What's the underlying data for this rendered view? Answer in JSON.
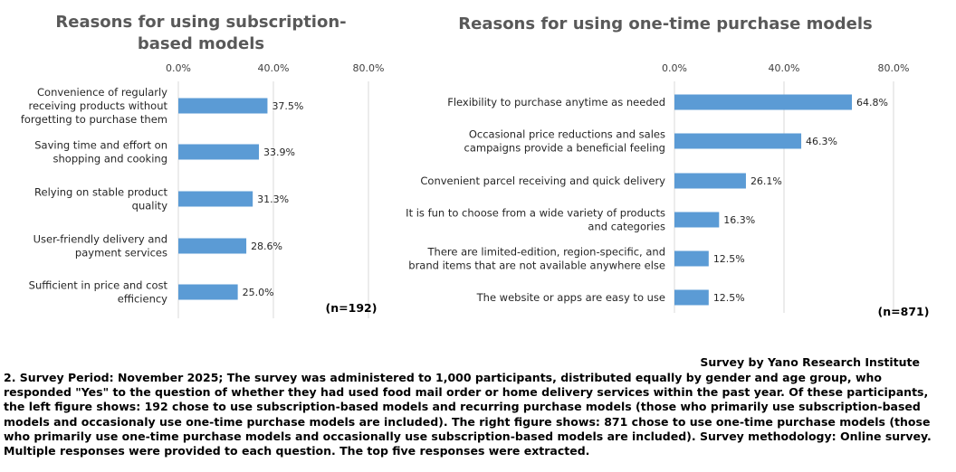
{
  "chart_data": [
    {
      "type": "bar",
      "orientation": "horizontal",
      "title": "Reasons for using  subscription-\nbased models",
      "categories": [
        "Convenience of regularly\nreceiving products without\nforgetting to purchase them",
        "Saving time and effort on\nshopping and cooking",
        "Relying on stable product\nquality",
        "User-friendly delivery and\npayment services",
        "Sufficient in price and cost\nefficiency"
      ],
      "values": [
        37.5,
        33.9,
        31.3,
        28.6,
        25.0
      ],
      "value_labels": [
        "37.5%",
        "33.9%",
        "31.3%",
        "28.6%",
        "25.0%"
      ],
      "xlim": [
        0,
        80
      ],
      "x_ticks": [
        "0.0%",
        "40.0%",
        "80.0%"
      ],
      "grid": "vertical",
      "bar_color": "#5B9BD5",
      "sample_label": "(n=192)"
    },
    {
      "type": "bar",
      "orientation": "horizontal",
      "title": "Reasons for using one-time purchase models",
      "categories": [
        "Flexibility to purchase anytime as needed",
        "Occasional price reductions and sales\ncampaigns provide a beneficial feeling",
        "Convenient parcel receiving and quick delivery",
        "It is fun to choose from a wide variety of products\nand categories",
        "There are limited-edition, region-specific, and\nbrand items that are not available anywhere else",
        "The website or apps are easy to use"
      ],
      "values": [
        64.8,
        46.3,
        26.1,
        16.3,
        12.5,
        12.5
      ],
      "value_labels": [
        "64.8%",
        "46.3%",
        "26.1%",
        "16.3%",
        "12.5%",
        "12.5%"
      ],
      "xlim": [
        0,
        80
      ],
      "x_ticks": [
        "0.0%",
        "40.0%",
        "80.0%"
      ],
      "grid": "vertical",
      "bar_color": "#5B9BD5",
      "sample_label": "(n=871)"
    }
  ],
  "source": "Survey by Yano Research Institute",
  "note": "2. Survey Period: November 2025; The survey was administered to 1,000 participants, distributed equally by gender and age group, who responded \"Yes\" to the question of whether they had used food mail order or home delivery services within the past year. Of these participants, the left figure shows: 192 chose to use subscription-based models and recurring purchase models (those who primarily use subscription-based models and occasionaly use one-time purchase models are included).  The right figure shows: 871 chose to use one-time purchase models (those who primarily use one-time purchase models and occasionally use subscription-based models are included). Survey methodology: Online survey. Multiple responses were provided to each question. The top five responses were extracted."
}
